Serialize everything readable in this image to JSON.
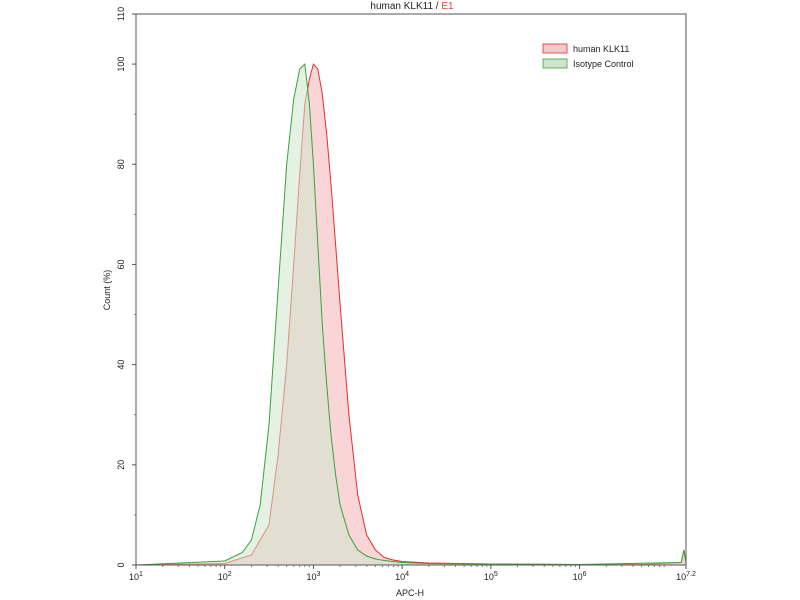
{
  "chart_data": {
    "type": "area",
    "title_parts": [
      {
        "text": "human KLK11 / ",
        "color": "#222222"
      },
      {
        "text": "E1",
        "color": "#e04040"
      }
    ],
    "xlabel": "APC-H",
    "ylabel": "Count (%)",
    "x_scale": "log10",
    "xlim": [
      10,
      15848932
    ],
    "ylim": [
      0,
      110
    ],
    "x_ticks": [
      {
        "value": 10,
        "base": "10",
        "exp": "1"
      },
      {
        "value": 100,
        "base": "10",
        "exp": "2"
      },
      {
        "value": 1000,
        "base": "10",
        "exp": "3"
      },
      {
        "value": 10000,
        "base": "10",
        "exp": "4"
      },
      {
        "value": 100000,
        "base": "10",
        "exp": "5"
      },
      {
        "value": 1000000,
        "base": "10",
        "exp": "6"
      },
      {
        "value": 15848932,
        "base": "10",
        "exp": "7.2"
      }
    ],
    "y_ticks": [
      0,
      20,
      40,
      60,
      80,
      100,
      110
    ],
    "grid": false,
    "legend_position": "top-right",
    "series": [
      {
        "name": "human KLK11",
        "stroke": "#e03030",
        "fill": "#f7c7c9",
        "x": [
          10,
          100,
          200,
          316,
          400,
          500,
          600,
          700,
          800,
          900,
          1000,
          1120,
          1260,
          1410,
          1580,
          1780,
          2000,
          2510,
          3160,
          3980,
          5010,
          6310,
          7940,
          10000,
          20000,
          100000,
          300000,
          1000000,
          5000000,
          14000000,
          15000000,
          15848932
        ],
        "y": [
          0,
          0.3,
          2,
          8,
          22,
          40,
          60,
          78,
          92,
          97,
          100,
          99,
          94,
          86,
          76,
          64,
          52,
          30,
          14,
          6,
          3,
          1.5,
          1,
          0.7,
          0.4,
          0.2,
          0.15,
          0.1,
          0.1,
          0.5,
          3,
          0.5
        ]
      },
      {
        "name": "Isotype Control",
        "stroke": "#3aa23a",
        "fill": "#cfe6cc",
        "x": [
          10,
          100,
          158,
          200,
          251,
          316,
          400,
          500,
          600,
          700,
          800,
          900,
          1000,
          1120,
          1260,
          1410,
          1580,
          1780,
          2000,
          2510,
          3160,
          3980,
          5010,
          6310,
          7940,
          10000,
          20000,
          100000,
          1000000,
          14000000,
          15000000,
          15848932
        ],
        "y": [
          0,
          0.8,
          2.5,
          5,
          12,
          28,
          55,
          80,
          93,
          99,
          100,
          92,
          80,
          64,
          48,
          36,
          26,
          18,
          12,
          6,
          3,
          1.8,
          1.2,
          0.9,
          0.7,
          0.5,
          0.3,
          0.2,
          0.1,
          0.5,
          3,
          0.5
        ]
      }
    ]
  }
}
